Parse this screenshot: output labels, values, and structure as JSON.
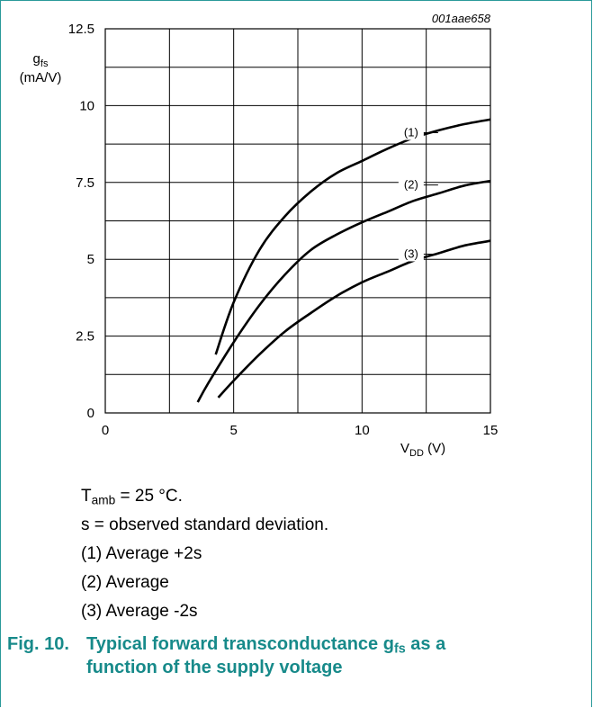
{
  "figure_id": "001aae658",
  "chart_data": {
    "type": "line",
    "xlim": [
      0,
      15
    ],
    "ylim": [
      0,
      12.5
    ],
    "x_ticks": [
      "0",
      "5",
      "10",
      "15"
    ],
    "y_ticks": [
      "0",
      "2.5",
      "5",
      "7.5",
      "10",
      "12.5"
    ],
    "x_grid_step": 2.5,
    "y_grid_step": 1.25,
    "grid": true,
    "xlabel": {
      "main": "V",
      "sub": "DD",
      "unit": "(V)"
    },
    "ylabel": {
      "main": "g",
      "sub": "fs",
      "unit": "(mA/V)"
    },
    "series": [
      {
        "name": "(1)",
        "label_at": [
          11.0,
          9.0
        ],
        "points": [
          [
            4.3,
            1.9
          ],
          [
            5,
            3.6
          ],
          [
            6,
            5.3
          ],
          [
            7,
            6.4
          ],
          [
            8,
            7.2
          ],
          [
            9,
            7.8
          ],
          [
            10,
            8.2
          ],
          [
            11,
            8.6
          ],
          [
            12,
            8.95
          ],
          [
            13,
            9.2
          ],
          [
            14,
            9.4
          ],
          [
            15,
            9.55
          ]
        ]
      },
      {
        "name": "(2)",
        "label_at": [
          11.0,
          7.3
        ],
        "points": [
          [
            3.6,
            0.35
          ],
          [
            4,
            0.95
          ],
          [
            5,
            2.3
          ],
          [
            6,
            3.5
          ],
          [
            7,
            4.5
          ],
          [
            8,
            5.3
          ],
          [
            9,
            5.8
          ],
          [
            10,
            6.2
          ],
          [
            11,
            6.55
          ],
          [
            12,
            6.9
          ],
          [
            13,
            7.15
          ],
          [
            14,
            7.4
          ],
          [
            15,
            7.55
          ]
        ]
      },
      {
        "name": "(3)",
        "label_at": [
          11.0,
          5.05
        ],
        "points": [
          [
            4.4,
            0.5
          ],
          [
            5,
            1.05
          ],
          [
            6,
            1.9
          ],
          [
            7,
            2.65
          ],
          [
            8,
            3.25
          ],
          [
            9,
            3.8
          ],
          [
            10,
            4.25
          ],
          [
            11,
            4.6
          ],
          [
            12,
            4.95
          ],
          [
            13,
            5.2
          ],
          [
            14,
            5.45
          ],
          [
            15,
            5.6
          ]
        ]
      }
    ]
  },
  "notes": {
    "tamb": {
      "main": "T",
      "sub": "amb",
      "rest": " = 25 °C."
    },
    "line2": "s = observed standard deviation.",
    "line3": "(1) Average +2s",
    "line4": "(2) Average",
    "line5": "(3) Average -2s"
  },
  "caption": {
    "number": "Fig. 10.",
    "text_pre": "Typical forward transconductance g",
    "text_sub": "fs",
    "text_post": " as a",
    "line2": "function of the supply voltage"
  }
}
